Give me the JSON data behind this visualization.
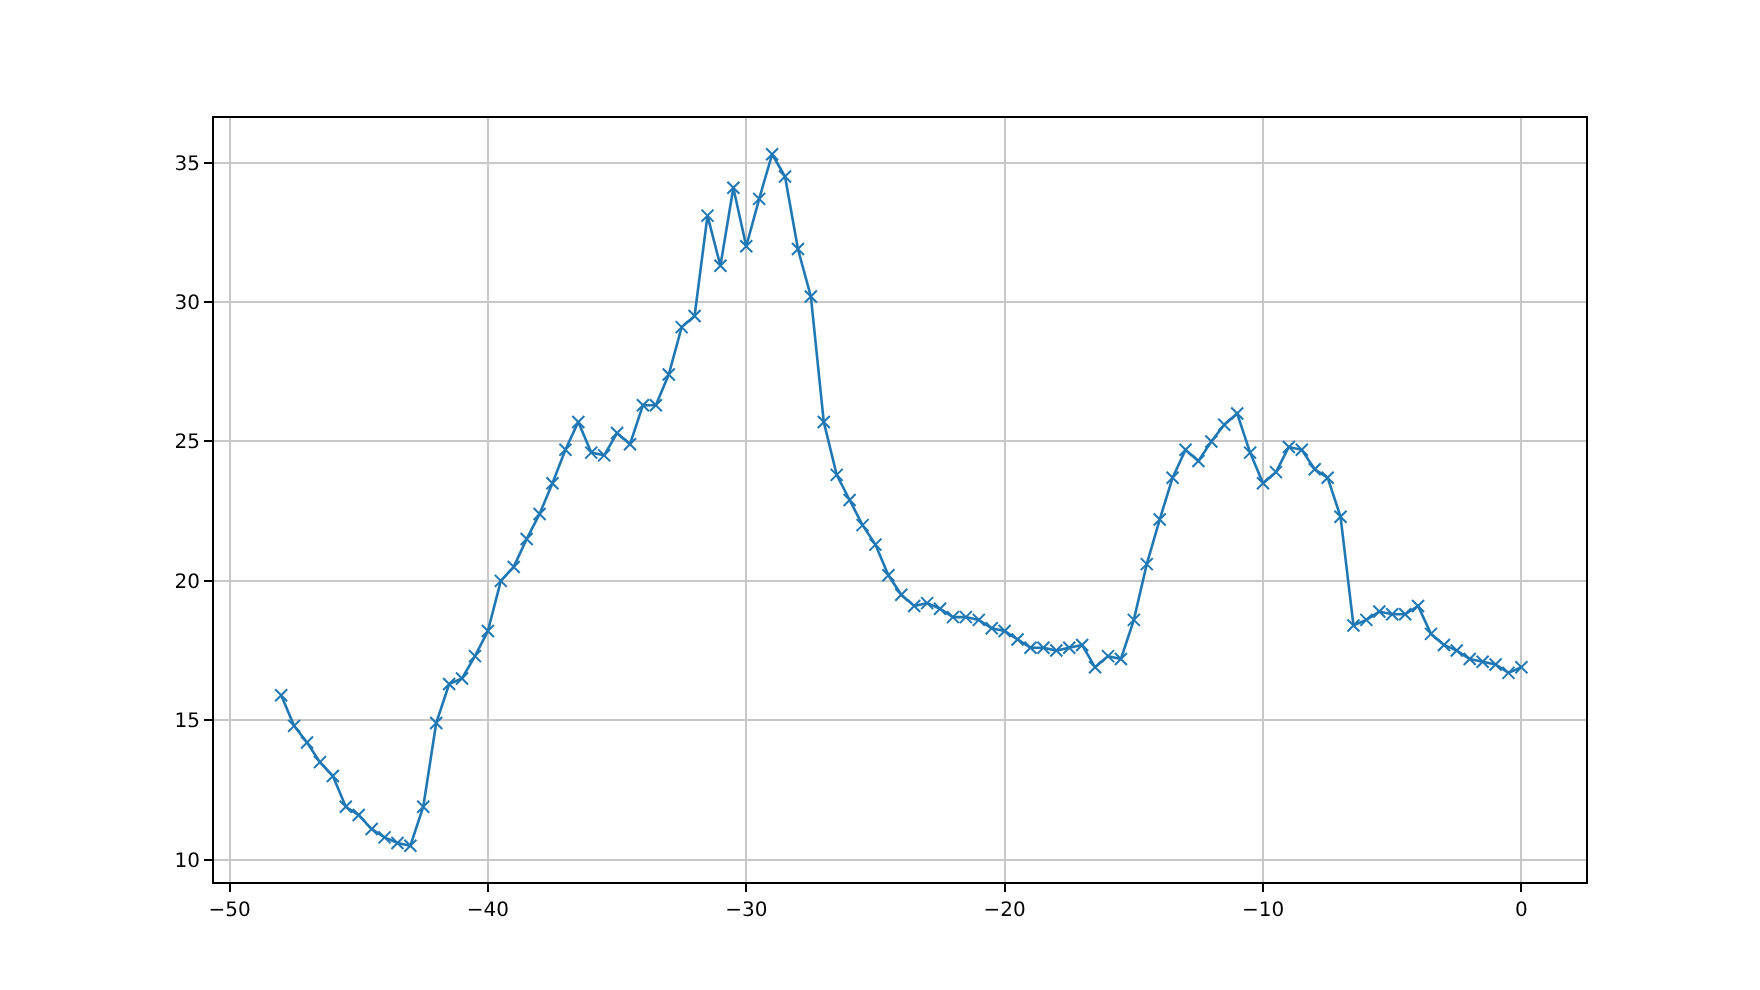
{
  "chart_data": {
    "type": "line",
    "marker": "cross",
    "line_style": "solid",
    "grid": true,
    "legend": false,
    "xlim": [
      -50.6,
      2.5
    ],
    "xticks": [
      -50,
      -40,
      -30,
      -20,
      -10,
      0
    ],
    "ylim": [
      9.2,
      36.6
    ],
    "yticks": [
      10,
      15,
      20,
      25,
      30,
      35
    ],
    "series": [
      {
        "color": "#1f77b4",
        "x": [
          -48,
          -47.5,
          -47,
          -46.5,
          -46,
          -45.5,
          -45,
          -44.5,
          -44,
          -43.5,
          -43,
          -42.5,
          -42,
          -41.5,
          -41,
          -40.5,
          -40,
          -39.5,
          -39,
          -38.5,
          -38,
          -37.5,
          -37,
          -36.5,
          -36,
          -35.5,
          -35,
          -34.5,
          -34,
          -33.5,
          -33,
          -32.5,
          -32,
          -31.5,
          -31,
          -30.5,
          -30,
          -29.5,
          -29,
          -28.5,
          -28,
          -27.5,
          -27,
          -26.5,
          -26,
          -25.5,
          -25,
          -24.5,
          -24,
          -23.5,
          -23,
          -22.5,
          -22,
          -21.5,
          -21,
          -20.5,
          -20,
          -19.5,
          -19,
          -18.5,
          -18,
          -17.5,
          -17,
          -16.5,
          -16,
          -15.5,
          -15,
          -14.5,
          -14,
          -13.5,
          -13,
          -12.5,
          -12,
          -11.5,
          -11,
          -10.5,
          -10,
          -9.5,
          -9,
          -8.5,
          -8,
          -7.5,
          -7,
          -6.5,
          -6,
          -5.5,
          -5,
          -4.5,
          -4,
          -3.5,
          -3,
          -2.5,
          -2,
          -1.5,
          -1,
          -0.5,
          0
        ],
        "values": [
          15.9,
          14.8,
          14.2,
          13.5,
          13.0,
          11.9,
          11.6,
          11.1,
          10.8,
          10.6,
          10.5,
          11.9,
          14.9,
          16.3,
          16.5,
          17.3,
          18.2,
          20.0,
          20.5,
          21.5,
          22.4,
          23.5,
          24.7,
          25.7,
          24.6,
          24.5,
          25.3,
          24.9,
          26.3,
          26.3,
          27.4,
          29.1,
          29.5,
          33.1,
          31.3,
          34.1,
          32.0,
          33.7,
          35.3,
          34.5,
          31.9,
          30.2,
          25.7,
          23.8,
          22.9,
          22.0,
          21.3,
          20.2,
          19.5,
          19.1,
          19.2,
          19.0,
          18.7,
          18.7,
          18.6,
          18.3,
          18.2,
          17.9,
          17.6,
          17.6,
          17.5,
          17.6,
          17.7,
          16.9,
          17.3,
          17.2,
          18.6,
          20.6,
          22.2,
          23.7,
          24.7,
          24.3,
          25.0,
          25.6,
          26.0,
          24.6,
          23.5,
          23.9,
          24.8,
          24.7,
          24.0,
          23.7,
          22.3,
          18.4,
          18.6,
          18.9,
          18.8,
          18.8,
          19.1,
          18.1,
          17.7,
          17.5,
          17.2,
          17.1,
          17.0,
          16.7,
          16.9
        ]
      }
    ]
  }
}
